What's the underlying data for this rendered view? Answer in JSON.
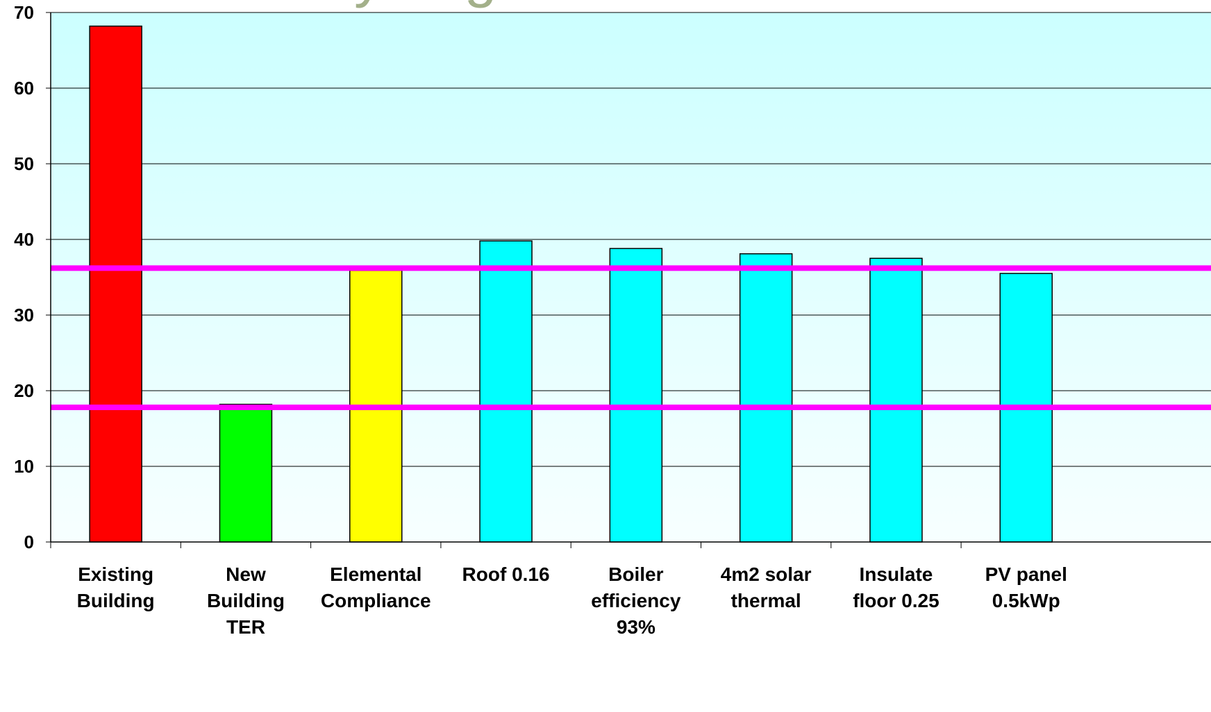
{
  "chart_data": {
    "type": "bar",
    "title": "...y ... g...",
    "xlabel": "",
    "ylabel": "",
    "ylim": [
      0,
      70
    ],
    "ytick_step": 10,
    "grid": true,
    "legend": "none",
    "categories": [
      [
        "Existing",
        "Building"
      ],
      [
        "New",
        "Building",
        "TER"
      ],
      [
        "Elemental",
        "Compliance"
      ],
      [
        "Roof 0.16"
      ],
      [
        "Boiler",
        "efficiency",
        "93%"
      ],
      [
        "4m2 solar",
        "thermal"
      ],
      [
        "Insulate",
        "floor 0.25"
      ],
      [
        "PV panel",
        "0.5kWp"
      ]
    ],
    "values": [
      68.2,
      18.2,
      35.9,
      39.8,
      38.8,
      38.1,
      37.5,
      35.5
    ],
    "bar_colors": [
      "#ff0000",
      "#00ff00",
      "#ffff00",
      "#00ffff",
      "#00ffff",
      "#00ffff",
      "#00ffff",
      "#00ffff"
    ],
    "reference_lines": [
      {
        "value": 36.2,
        "color": "#ff00ff"
      },
      {
        "value": 17.8,
        "color": "#ff00ff"
      }
    ],
    "colors": {
      "plot_bg_top": "#ccffff",
      "plot_bg_bottom": "#f7ffff",
      "gridline": "#000000",
      "title_color": "#a3b08a"
    }
  }
}
